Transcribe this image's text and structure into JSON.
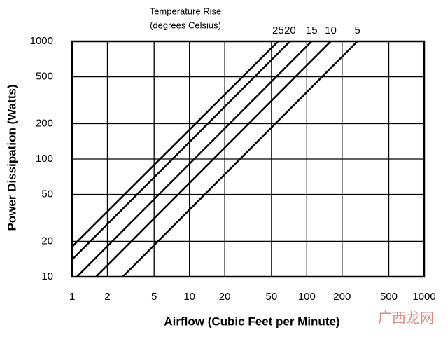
{
  "chart_data": {
    "type": "line",
    "title": "Temperature Rise",
    "subtitle": "(degrees Celsius)",
    "x_label": "Airflow (Cubic Feet per Minute)",
    "y_label": "Power Dissipation (Watts)",
    "xscale": "log",
    "yscale": "log",
    "grid": true,
    "xlim": [
      1,
      1000
    ],
    "ylim": [
      10,
      1000
    ],
    "xticks": [
      1,
      2,
      5,
      10,
      20,
      50,
      100,
      200,
      500,
      1000
    ],
    "yticks": [
      10,
      20,
      50,
      100,
      200,
      500,
      1000
    ],
    "series": [
      {
        "name": "25",
        "color": "#000000",
        "x": [
          1,
          57
        ],
        "values": [
          18,
          1000
        ]
      },
      {
        "name": "20",
        "color": "#000000",
        "x": [
          1,
          72
        ],
        "values": [
          14,
          1000
        ]
      },
      {
        "name": "15",
        "color": "#000000",
        "x": [
          1.1,
          110
        ],
        "values": [
          10,
          1000
        ]
      },
      {
        "name": "10",
        "color": "#000000",
        "x": [
          1.6,
          160
        ],
        "values": [
          10,
          1000
        ]
      },
      {
        "name": "5",
        "color": "#000000",
        "x": [
          2.7,
          270
        ],
        "values": [
          10,
          1000
        ]
      }
    ],
    "watermark": "广西龙网"
  }
}
